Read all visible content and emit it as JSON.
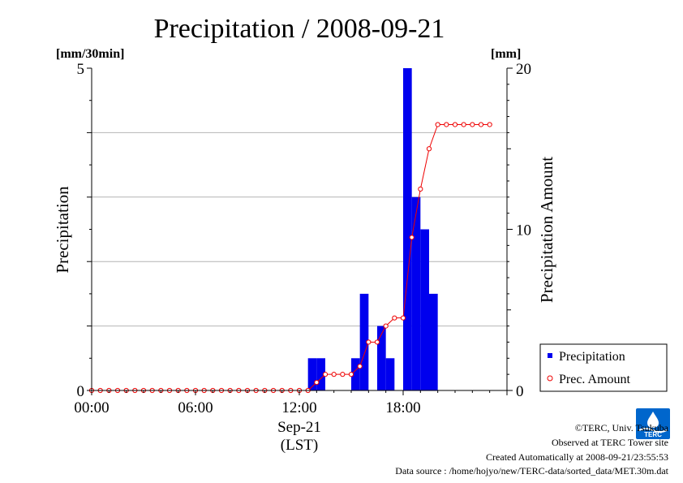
{
  "chart_data": {
    "type": "bar",
    "title": "Precipitation / 2008-09-21",
    "ylabel_left": "Precipitation",
    "ylabel_right": "Precipitation Amount",
    "unit_left": "[mm/30min]",
    "unit_right": "[mm]",
    "ylim_left": [
      0,
      5
    ],
    "ylim_right": [
      0,
      20
    ],
    "yticks_left": [
      "0",
      "5"
    ],
    "yticks_right": [
      "0",
      "10",
      "20"
    ],
    "xlim": [
      0,
      24
    ],
    "xticks": [
      {
        "value": 0,
        "label": "00:00"
      },
      {
        "value": 6,
        "label": "06:00"
      },
      {
        "value": 12,
        "label": "12:00"
      },
      {
        "value": 18,
        "label": "18:00"
      }
    ],
    "xlabel_date": "Sep-21",
    "xlabel_tz": "(LST)",
    "grid": true,
    "legend_position": "bottom-right-outside",
    "series": [
      {
        "name": "Precipitation",
        "type": "bar",
        "axis": "left",
        "color": "#0000ee",
        "x": [
          12.5,
          13.0,
          15.0,
          15.5,
          16.5,
          17.0,
          18.0,
          18.5,
          19.0,
          19.5
        ],
        "values": [
          0.5,
          0.5,
          0.5,
          1.5,
          1.0,
          0.5,
          5.0,
          3.0,
          2.5,
          1.5
        ]
      },
      {
        "name": "Prec. Amount",
        "type": "line",
        "axis": "right",
        "color": "#ee0000",
        "x": [
          0.0,
          0.5,
          1.0,
          1.5,
          2.0,
          2.5,
          3.0,
          3.5,
          4.0,
          4.5,
          5.0,
          5.5,
          6.0,
          6.5,
          7.0,
          7.5,
          8.0,
          8.5,
          9.0,
          9.5,
          10.0,
          10.5,
          11.0,
          11.5,
          12.0,
          12.5,
          13.0,
          13.5,
          14.0,
          14.5,
          15.0,
          15.5,
          16.0,
          16.5,
          17.0,
          17.5,
          18.0,
          18.5,
          19.0,
          19.5,
          20.0,
          20.5,
          21.0,
          21.5,
          22.0,
          22.5,
          23.0
        ],
        "values": [
          0,
          0,
          0,
          0,
          0,
          0,
          0,
          0,
          0,
          0,
          0,
          0,
          0,
          0,
          0,
          0,
          0,
          0,
          0,
          0,
          0,
          0,
          0,
          0,
          0,
          0.0,
          0.5,
          1.0,
          1.0,
          1.0,
          1.0,
          1.5,
          3.0,
          3.0,
          4.0,
          4.5,
          4.5,
          9.5,
          12.5,
          15.0,
          16.5,
          16.5,
          16.5,
          16.5,
          16.5,
          16.5,
          16.5
        ]
      }
    ]
  },
  "footer": {
    "copyright": "©TERC, Univ. Tsukuba",
    "observed": "Observed at TERC Tower site",
    "created": "Created Automatically at 2008-09-21/23:55:53",
    "source": "Data source : /home/hojyo/new/TERC-data/sorted_data/MET.30m.dat"
  },
  "logo": {
    "text": "TERC",
    "color": "#0066cc"
  }
}
